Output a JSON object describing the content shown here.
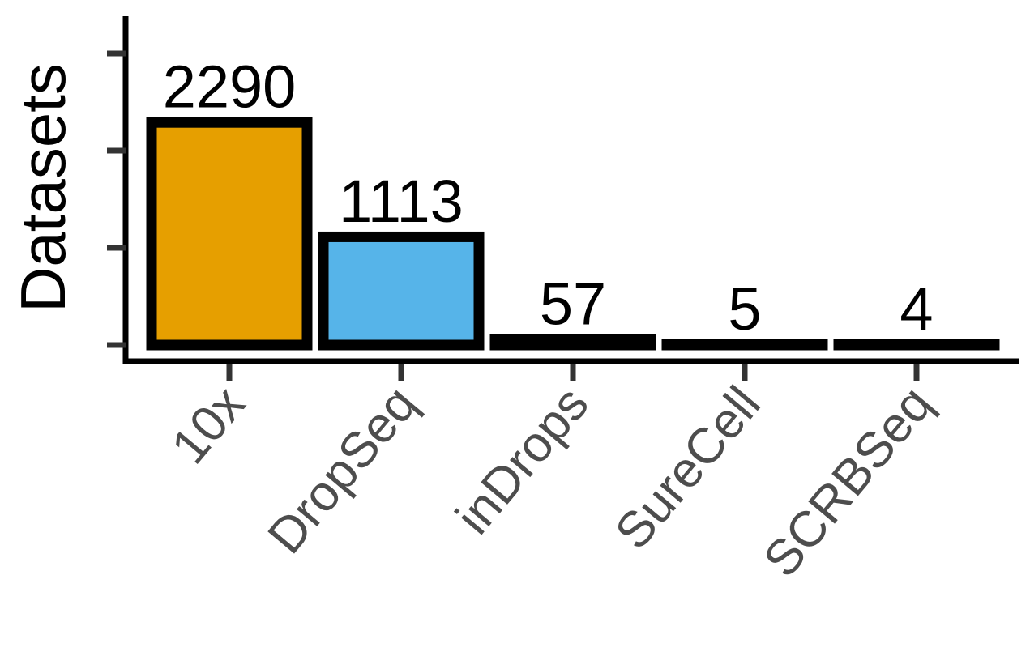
{
  "chart_data": {
    "type": "bar",
    "title": "",
    "xlabel": "",
    "ylabel": "Datasets",
    "categories": [
      "10x",
      "DropSeq",
      "inDrops",
      "SureCell",
      "SCRBSeq"
    ],
    "values": [
      2290,
      1113,
      57,
      5,
      4
    ],
    "data_labels": [
      "2290",
      "1113",
      "57",
      "5",
      "4"
    ],
    "colors": [
      "#E69F00",
      "#56B4E9",
      "#000000",
      "#000000",
      "#000000"
    ],
    "ylim": [
      0,
      3300
    ],
    "y_ticks": [
      0,
      1000,
      2000,
      3000
    ],
    "y_tick_labels_visible": false,
    "grid": false,
    "legend": "none"
  }
}
